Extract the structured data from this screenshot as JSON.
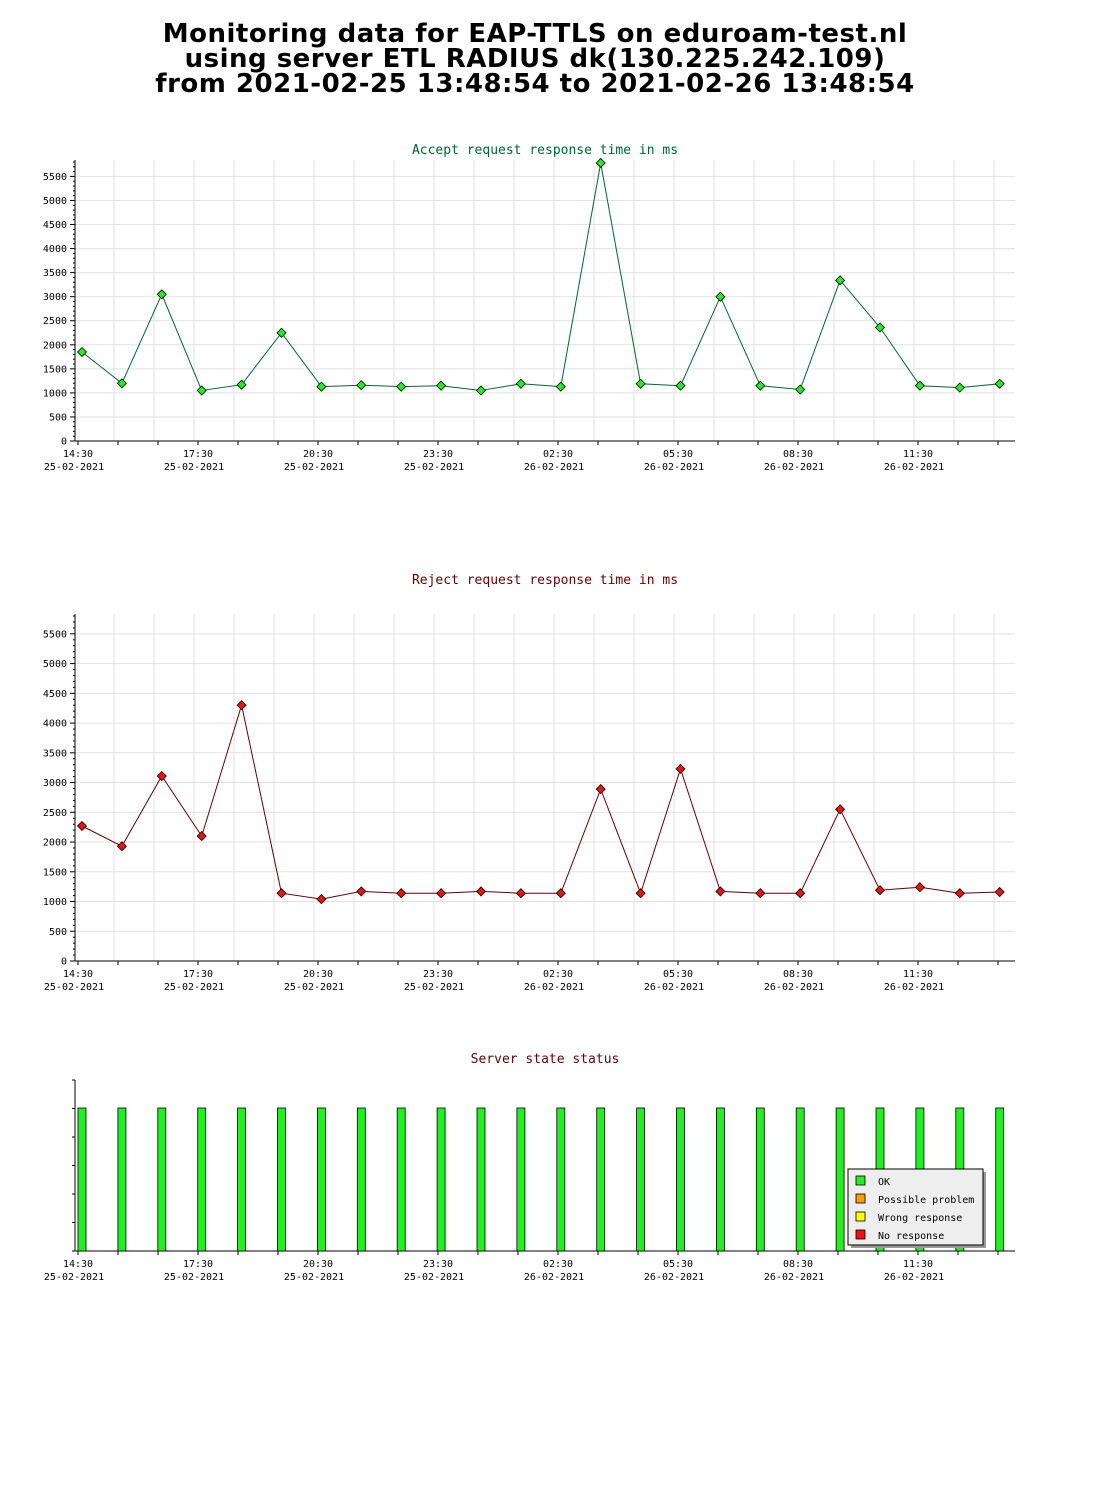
{
  "page": {
    "title_lines": [
      "Monitoring data for EAP-TTLS on eduroam-test.nl",
      "using server ETL RADIUS dk(130.225.242.109)",
      "from 2021-02-25 13:48:54 to 2021-02-26 13:48:54"
    ]
  },
  "x_ticks": [
    {
      "time": "14:30",
      "date": "25-02-2021"
    },
    {
      "time": "17:30",
      "date": "25-02-2021"
    },
    {
      "time": "20:30",
      "date": "25-02-2021"
    },
    {
      "time": "23:30",
      "date": "25-02-2021"
    },
    {
      "time": "02:30",
      "date": "26-02-2021"
    },
    {
      "time": "05:30",
      "date": "26-02-2021"
    },
    {
      "time": "08:30",
      "date": "26-02-2021"
    },
    {
      "time": "11:30",
      "date": "26-02-2021"
    }
  ],
  "chart_data": [
    {
      "type": "line",
      "title": "Accept request response time in ms",
      "title_color": "#006633",
      "xlabel": "",
      "ylabel": "",
      "ylim": [
        0,
        5800
      ],
      "yticks": [
        0,
        500,
        1000,
        1500,
        2000,
        2500,
        3000,
        3500,
        4000,
        4500,
        5000,
        5500
      ],
      "grid": true,
      "x": [
        "14:48",
        "15:48",
        "16:48",
        "17:48",
        "18:48",
        "19:48",
        "20:48",
        "21:48",
        "22:48",
        "23:48",
        "00:48",
        "01:48",
        "02:48",
        "03:48",
        "04:48",
        "05:48",
        "06:48",
        "07:48",
        "08:48",
        "09:48",
        "10:48",
        "11:48",
        "12:48",
        "13:48"
      ],
      "series": [
        {
          "color": "#006633",
          "marker_color": "#22ee22",
          "values": [
            1850,
            1200,
            3050,
            1050,
            1170,
            2250,
            1130,
            1160,
            1130,
            1150,
            1050,
            1190,
            1130,
            5780,
            1190,
            1150,
            3000,
            1150,
            1070,
            3340,
            2360,
            1150,
            1110,
            1190
          ]
        }
      ]
    },
    {
      "type": "line",
      "title": "Reject request response time in ms",
      "title_color": "#660000",
      "xlabel": "",
      "ylabel": "",
      "ylim": [
        0,
        5800
      ],
      "yticks": [
        0,
        500,
        1000,
        1500,
        2000,
        2500,
        3000,
        3500,
        4000,
        4500,
        5000,
        5500
      ],
      "grid": true,
      "x": [
        "14:48",
        "15:48",
        "16:48",
        "17:48",
        "18:48",
        "19:48",
        "20:48",
        "21:48",
        "22:48",
        "23:48",
        "00:48",
        "01:48",
        "02:48",
        "03:48",
        "04:48",
        "05:48",
        "06:48",
        "07:48",
        "08:48",
        "09:48",
        "10:48",
        "11:48",
        "12:48",
        "13:48"
      ],
      "series": [
        {
          "color": "#660000",
          "marker_color": "#ee1111",
          "values": [
            2270,
            1930,
            3110,
            2100,
            4300,
            1140,
            1040,
            1170,
            1140,
            1140,
            1170,
            1140,
            1140,
            2890,
            1140,
            3230,
            1170,
            1140,
            1140,
            2550,
            1190,
            1240,
            1140,
            1160
          ]
        }
      ]
    },
    {
      "type": "bar",
      "title": "Server state status",
      "title_color": "#660000",
      "xlabel": "",
      "ylabel": "",
      "grid": false,
      "legend_position": "bottom-right",
      "legend": [
        {
          "label": "OK",
          "color": "#22ee22"
        },
        {
          "label": "Possible problem",
          "color": "#ff9900"
        },
        {
          "label": "Wrong response",
          "color": "#ffff00"
        },
        {
          "label": "No response",
          "color": "#ee1111"
        }
      ],
      "x": [
        "14:48",
        "15:48",
        "16:48",
        "17:48",
        "18:48",
        "19:48",
        "20:48",
        "21:48",
        "22:48",
        "23:48",
        "00:48",
        "01:48",
        "02:48",
        "03:48",
        "04:48",
        "05:48",
        "06:48",
        "07:48",
        "08:48",
        "09:48",
        "10:48",
        "11:48",
        "12:48",
        "13:48"
      ],
      "states": [
        "OK",
        "OK",
        "OK",
        "OK",
        "OK",
        "OK",
        "OK",
        "OK",
        "OK",
        "OK",
        "OK",
        "OK",
        "OK",
        "OK",
        "OK",
        "OK",
        "OK",
        "OK",
        "OK",
        "OK",
        "OK",
        "OK",
        "OK",
        "OK"
      ]
    }
  ]
}
